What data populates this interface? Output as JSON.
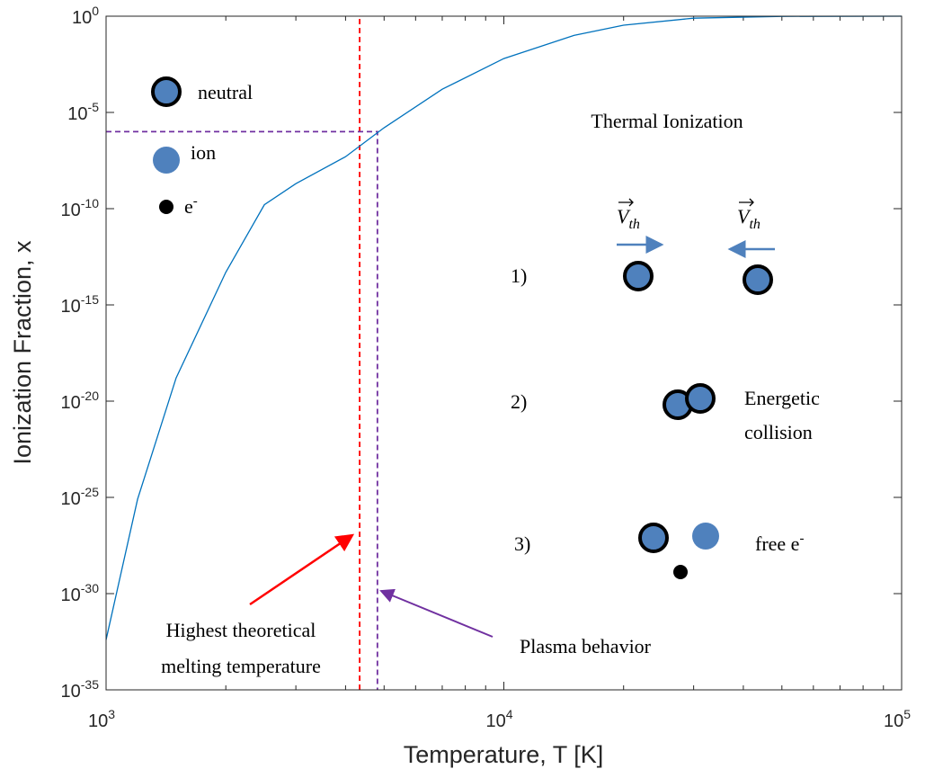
{
  "chart_data": {
    "type": "line",
    "xlabel": "Temperature, T [K]",
    "ylabel": "Ionization Fraction, x",
    "xscale": "log",
    "yscale": "log",
    "xlim": [
      1000,
      100000
    ],
    "ylim": [
      1e-35,
      1
    ],
    "xticks": [
      {
        "value": 1000,
        "base": "10",
        "exponent": "3"
      },
      {
        "value": 10000,
        "base": "10",
        "exponent": "4"
      },
      {
        "value": 100000,
        "base": "10",
        "exponent": "5"
      }
    ],
    "xminorticks": [
      2000,
      3000,
      4000,
      5000,
      6000,
      7000,
      8000,
      9000,
      20000,
      30000,
      40000,
      50000,
      60000,
      70000,
      80000,
      90000
    ],
    "yticks": [
      {
        "value": 1e-35,
        "base": "10",
        "exponent": "-35"
      },
      {
        "value": 1e-30,
        "base": "10",
        "exponent": "-30"
      },
      {
        "value": 1e-25,
        "base": "10",
        "exponent": "-25"
      },
      {
        "value": 1e-20,
        "base": "10",
        "exponent": "-20"
      },
      {
        "value": 1e-15,
        "base": "10",
        "exponent": "-15"
      },
      {
        "value": 1e-10,
        "base": "10",
        "exponent": "-10"
      },
      {
        "value": 1e-05,
        "base": "10",
        "exponent": "-5"
      },
      {
        "value": 1,
        "base": "10",
        "exponent": "0"
      }
    ],
    "x": [
      1000,
      1200,
      1500,
      2000,
      2500,
      3000,
      4000,
      5000,
      7000,
      10000,
      15000,
      20000,
      30000,
      50000,
      100000
    ],
    "series": [
      {
        "color": "#0072bd",
        "values": [
          4e-33,
          8e-26,
          1.6e-19,
          5e-14,
          1.6e-10,
          2e-09,
          5e-08,
          1.6e-06,
          0.00016,
          0.0063,
          0.1,
          0.34,
          0.79,
          0.98,
          1
        ]
      }
    ],
    "guides": [
      {
        "color": "#ff0000",
        "x": [
          4340,
          4340
        ],
        "y": [
          1e-35,
          1
        ]
      },
      {
        "color": "#7030a0",
        "x": [
          1000,
          4810,
          4810
        ],
        "y": [
          1e-06,
          1e-06,
          1e-35
        ]
      }
    ],
    "annotations": {
      "melting": {
        "lines": [
          "Highest theoretical",
          "melting temperature"
        ],
        "color": "#ff0000"
      },
      "plasma": {
        "text": "Plasma behavior",
        "color": "#7030a0"
      }
    },
    "diagram": {
      "legend": {
        "neutral": "neutral",
        "ion": "ion",
        "electron": {
          "base": "e",
          "superscript": "-"
        }
      },
      "title": "Thermal Ionization",
      "velocity": {
        "base": "V",
        "subscript": "th"
      },
      "steps": [
        "1)",
        "2)",
        "3)"
      ],
      "collision": [
        "Energetic",
        "collision"
      ],
      "free": {
        "base": "free e",
        "superscript": "-"
      }
    }
  }
}
